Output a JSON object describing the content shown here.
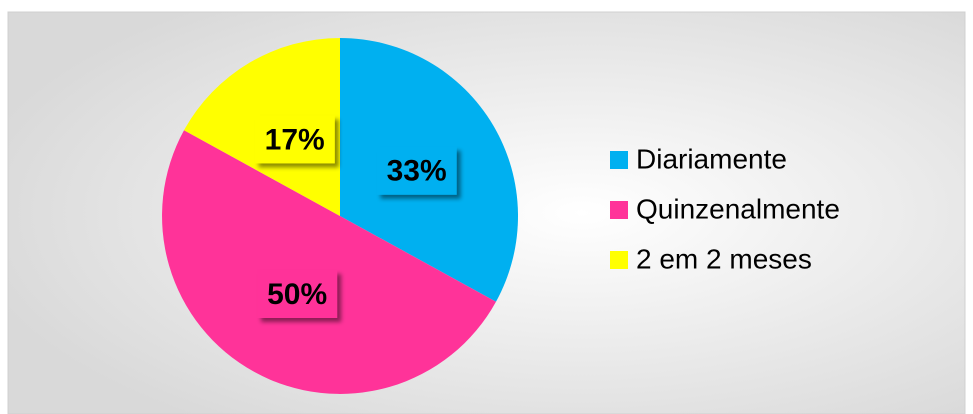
{
  "chart_data": {
    "type": "pie",
    "categories": [
      "Diariamente",
      "Quinzenalmente",
      "2 em 2 meses"
    ],
    "values": [
      33,
      50,
      17
    ],
    "value_labels": [
      "33%",
      "50%",
      "17%"
    ],
    "colors": [
      "#00b0f0",
      "#ff3399",
      "#ffff00"
    ],
    "legend": "right"
  }
}
